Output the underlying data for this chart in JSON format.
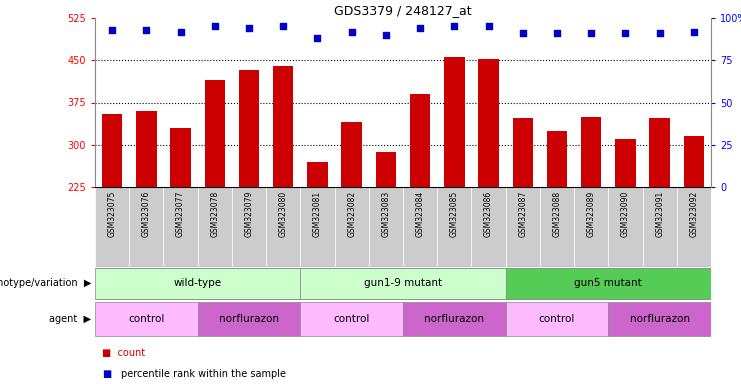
{
  "title": "GDS3379 / 248127_at",
  "samples": [
    "GSM323075",
    "GSM323076",
    "GSM323077",
    "GSM323078",
    "GSM323079",
    "GSM323080",
    "GSM323081",
    "GSM323082",
    "GSM323083",
    "GSM323084",
    "GSM323085",
    "GSM323086",
    "GSM323087",
    "GSM323088",
    "GSM323089",
    "GSM323090",
    "GSM323091",
    "GSM323092"
  ],
  "counts": [
    355,
    360,
    330,
    415,
    432,
    440,
    270,
    340,
    288,
    390,
    455,
    453,
    348,
    325,
    350,
    310,
    348,
    315
  ],
  "percentile": [
    93,
    93,
    92,
    95,
    94,
    95,
    88,
    92,
    90,
    94,
    95,
    95,
    91,
    91,
    91,
    91,
    91,
    92
  ],
  "ymin": 225,
  "ymax": 525,
  "yticks_left": [
    225,
    300,
    375,
    450,
    525
  ],
  "yticks_right": [
    0,
    25,
    50,
    75,
    100
  ],
  "bar_color": "#cc0000",
  "dot_color": "#0000cc",
  "groups": [
    {
      "label": "wild-type",
      "start": 0,
      "end": 6,
      "color": "#ccffcc"
    },
    {
      "label": "gun1-9 mutant",
      "start": 6,
      "end": 12,
      "color": "#ccffcc"
    },
    {
      "label": "gun5 mutant",
      "start": 12,
      "end": 18,
      "color": "#55cc55"
    }
  ],
  "agents": [
    {
      "label": "control",
      "start": 0,
      "end": 3,
      "color": "#ffbbff"
    },
    {
      "label": "norflurazon",
      "start": 3,
      "end": 6,
      "color": "#cc66cc"
    },
    {
      "label": "control",
      "start": 6,
      "end": 9,
      "color": "#ffbbff"
    },
    {
      "label": "norflurazon",
      "start": 9,
      "end": 12,
      "color": "#cc66cc"
    },
    {
      "label": "control",
      "start": 12,
      "end": 15,
      "color": "#ffbbff"
    },
    {
      "label": "norflurazon",
      "start": 15,
      "end": 18,
      "color": "#cc66cc"
    }
  ],
  "bar_color_legend": "#cc0000",
  "dot_color_legend": "#0000cc",
  "grid_dotted_at": [
    300,
    375,
    450
  ],
  "tick_bg_color": "#cccccc"
}
